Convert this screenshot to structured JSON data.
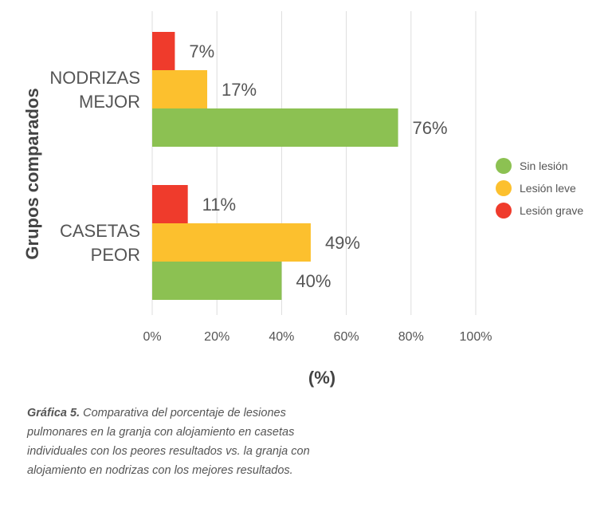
{
  "chart_data": {
    "type": "bar",
    "orientation": "horizontal",
    "categories": [
      [
        "NODRIZAS",
        "MEJOR"
      ],
      [
        "CASETAS",
        "PEOR"
      ]
    ],
    "series": [
      {
        "name": "Lesión grave",
        "color": "#ef3b2c",
        "values": [
          7,
          11
        ],
        "labels": [
          "7%",
          "11%"
        ]
      },
      {
        "name": "Lesión leve",
        "color": "#fcc02e",
        "values": [
          17,
          49
        ],
        "labels": [
          "17%",
          "49%"
        ]
      },
      {
        "name": "Sin lesión",
        "color": "#8cc152",
        "values": [
          76,
          40
        ],
        "labels": [
          "76%",
          "40%"
        ]
      }
    ],
    "legend_order": [
      "Sin lesión",
      "Lesión leve",
      "Lesión grave"
    ],
    "legend_position": "right",
    "xlabel": "(%)",
    "ylabel": "Grupos comparados",
    "xlim": [
      0,
      100
    ],
    "xticks": [
      0,
      20,
      40,
      60,
      80,
      100
    ],
    "xtick_labels": [
      "0%",
      "20%",
      "40%",
      "60%",
      "80%",
      "100%"
    ],
    "grid": "vertical"
  },
  "caption": {
    "label": "Gráfica 5.",
    "text": "Comparativa del porcentaje de lesiones pulmonares en la granja con alojamiento en casetas individuales con los peores resultados vs. la granja con alojamiento en nodrizas con los mejores resultados."
  }
}
